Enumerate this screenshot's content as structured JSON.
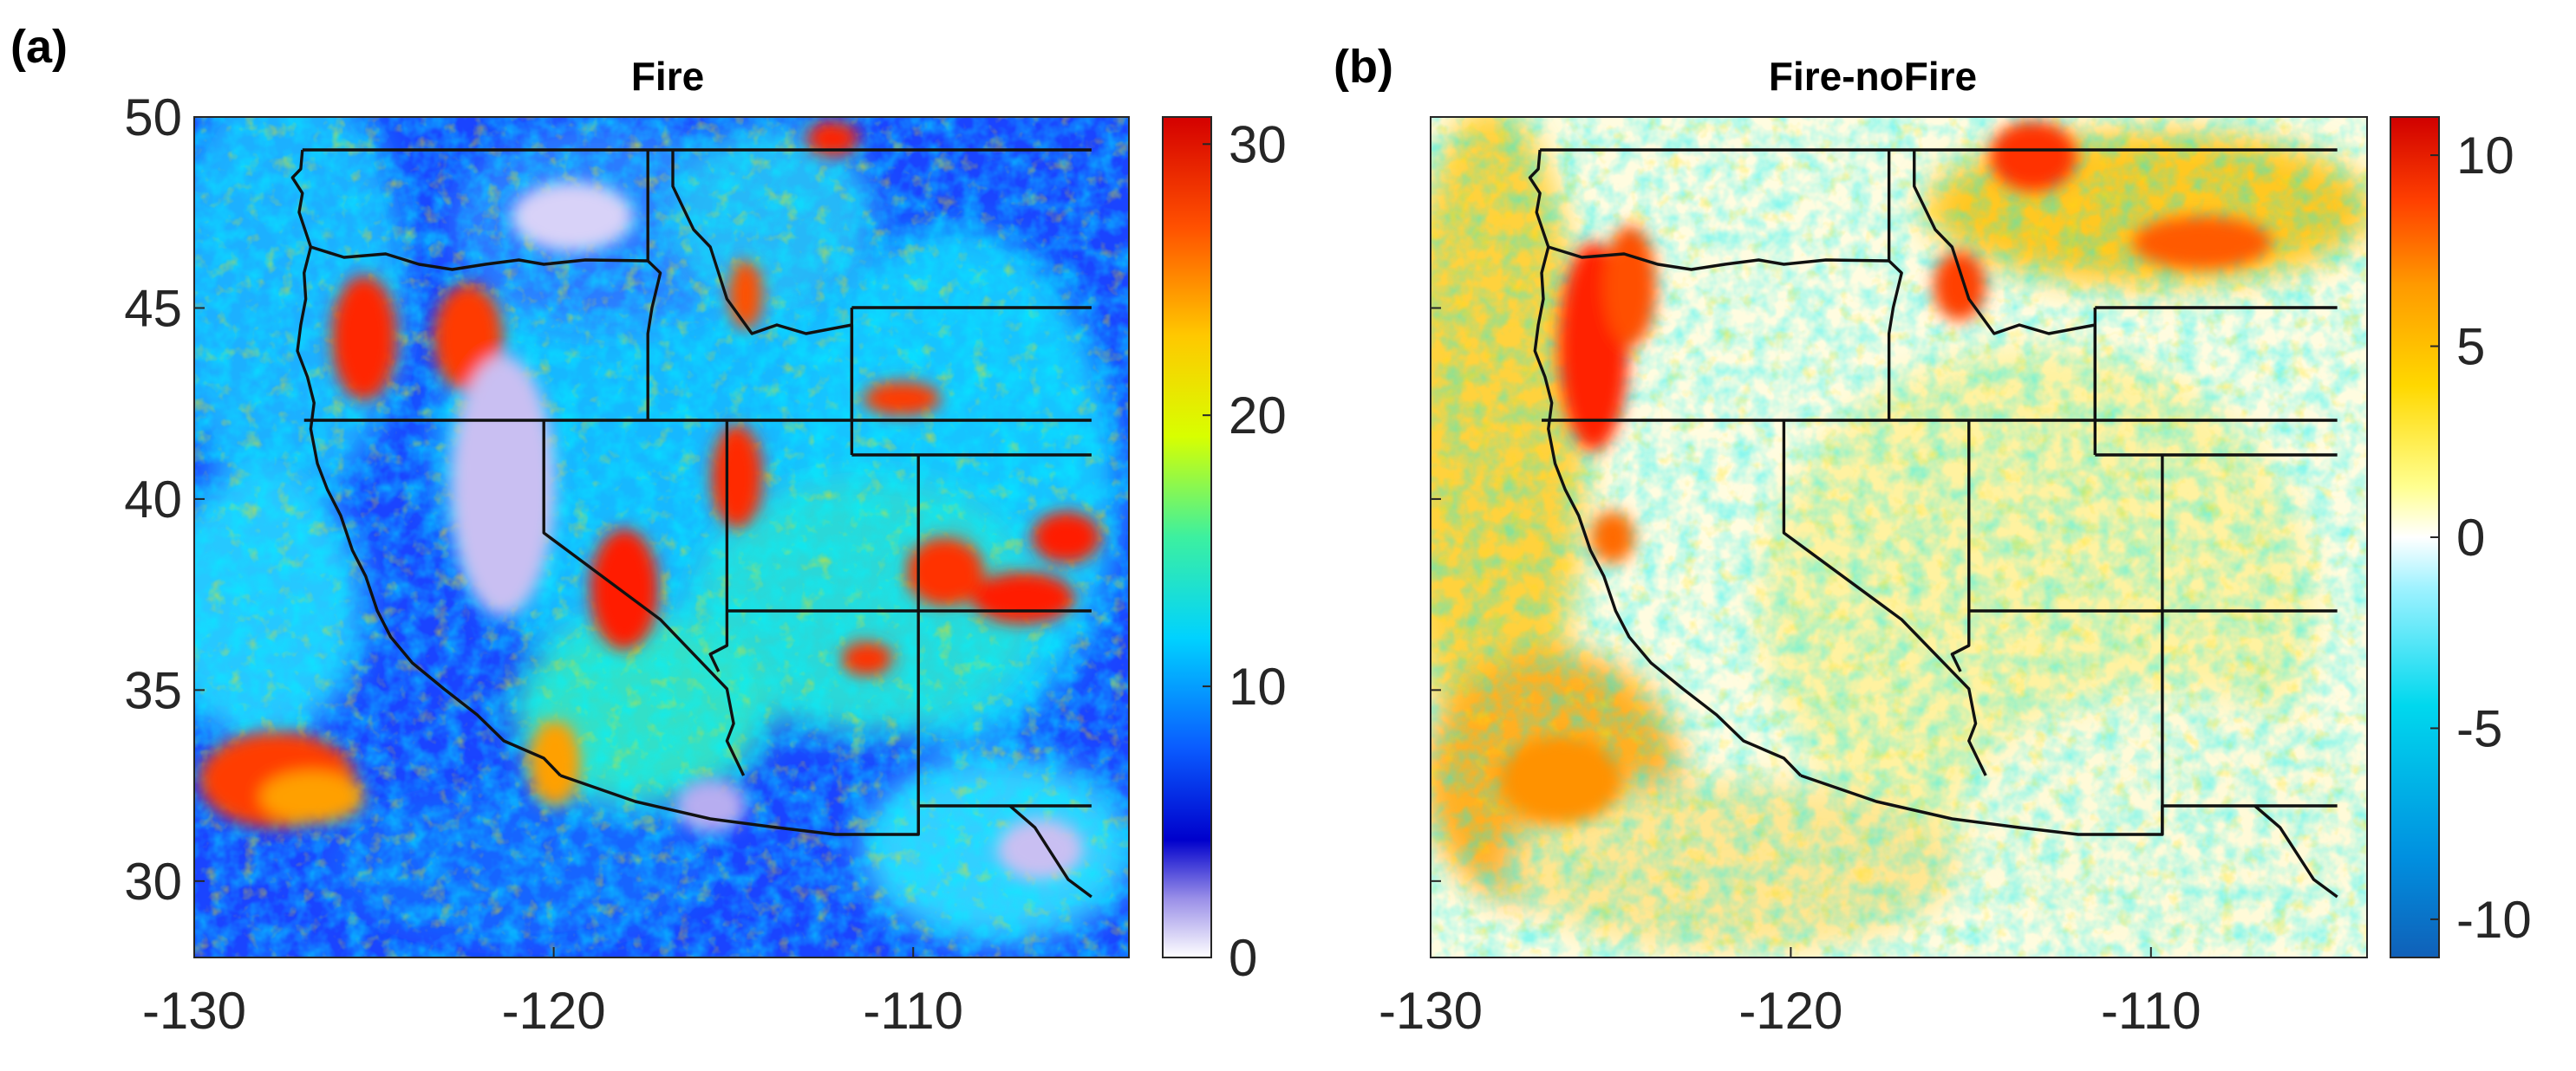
{
  "panels": [
    {
      "id": "a",
      "label": "(a)",
      "title": "Fire",
      "xticks": [
        "-130",
        "-120",
        "-110"
      ],
      "yticks": [
        "50",
        "45",
        "40",
        "35",
        "30"
      ],
      "colorbar": {
        "ticks": [
          "30",
          "20",
          "10",
          "0"
        ],
        "range": [
          0,
          31
        ],
        "colors": [
          "#ffffff",
          "#9a8fe8",
          "#0000cc",
          "#0a5cff",
          "#00d2ff",
          "#3cf0a0",
          "#d8ff00",
          "#ffc800",
          "#ff5000",
          "#d40000"
        ]
      }
    },
    {
      "id": "b",
      "label": "(b)",
      "title": "Fire-noFire",
      "xticks": [
        "-130",
        "-120",
        "-110"
      ],
      "yticks": [],
      "colorbar": {
        "ticks": [
          "10",
          "5",
          "0",
          "-5",
          "-10"
        ],
        "range": [
          -11,
          11
        ],
        "colors": [
          "#1060b8",
          "#0090e0",
          "#00d8ee",
          "#9ff2ff",
          "#ffffff",
          "#ffff90",
          "#ffd800",
          "#ff9a00",
          "#ff4000",
          "#d00000"
        ]
      }
    }
  ],
  "map_extent": {
    "lon": [
      -130,
      -104
    ],
    "lat": [
      28,
      50
    ]
  }
}
